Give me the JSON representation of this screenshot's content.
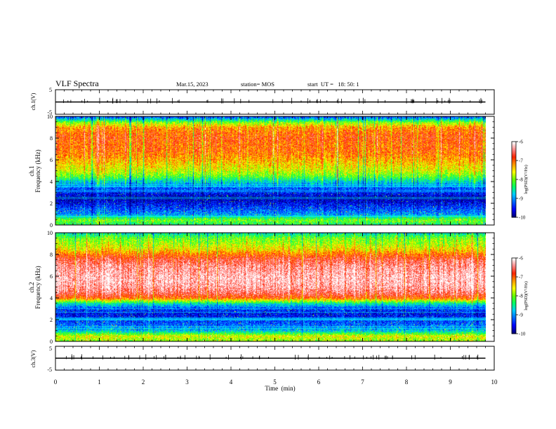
{
  "header": {
    "title": "VLF Spectra",
    "date": "Mar.15, 2023",
    "station": "station= MOS",
    "start": "start  UT =   18: 50: 1"
  },
  "colors": {
    "spectrum": [
      "#00007a",
      "#0000ff",
      "#0066ff",
      "#00ccff",
      "#00ff66",
      "#66ff00",
      "#ffff00",
      "#ff9900",
      "#ff2200",
      "#ff8888",
      "#ffffff"
    ],
    "trace": "#000000"
  },
  "chart_data": [
    {
      "type": "line",
      "name": "waveform-ch1",
      "ylabel": "ch.1(V)",
      "ylim": [
        -5,
        5
      ],
      "yticks": [
        "5",
        "-5"
      ],
      "x": [
        0,
        9.8
      ],
      "y": [
        0,
        0
      ]
    },
    {
      "type": "heatmap",
      "name": "spectrogram-ch1",
      "ylabel_lines": [
        "ch.1",
        "Frequency (kHz)"
      ],
      "ylim": [
        0,
        10
      ],
      "yticks": [
        "0",
        "2",
        "4",
        "6",
        "8",
        "10"
      ],
      "xlim": [
        0,
        10
      ],
      "x_extent": [
        0,
        9.8
      ],
      "colorbar": {
        "label": "log(PSD)(V²/Hz)",
        "range": [
          -10,
          -6
        ],
        "ticks": [
          "-6",
          "-7",
          "-8",
          "-9",
          "-10"
        ]
      },
      "frequency_profile_khz": [
        0,
        0.5,
        1,
        1.5,
        2,
        2.5,
        3,
        3.5,
        4,
        4.5,
        5,
        5.5,
        6,
        6.5,
        7,
        7.5,
        8,
        8.5,
        9,
        9.5,
        10
      ],
      "log_psd_profile": [
        -8.4,
        -8.0,
        -9.0,
        -9.3,
        -9.6,
        -9.9,
        -9.5,
        -9.2,
        -8.7,
        -8.1,
        -7.7,
        -7.5,
        -7.3,
        -7.1,
        -7.0,
        -7.0,
        -6.9,
        -7.0,
        -7.2,
        -8.0,
        -9.4
      ]
    },
    {
      "type": "heatmap",
      "name": "spectrogram-ch2",
      "ylabel_lines": [
        "ch.2",
        "Frequency (kHz)"
      ],
      "ylim": [
        0,
        10
      ],
      "yticks": [
        "0",
        "2",
        "4",
        "6",
        "8",
        "10"
      ],
      "xlim": [
        0,
        10
      ],
      "x_extent": [
        0,
        9.8
      ],
      "colorbar": {
        "label": "log(PSD)(V²/Hz)",
        "range": [
          -10,
          -6
        ],
        "ticks": [
          "-6",
          "-7",
          "-8",
          "-9",
          "-10"
        ]
      },
      "frequency_profile_khz": [
        0,
        0.5,
        1,
        1.5,
        2,
        2.5,
        3,
        3.5,
        4,
        4.5,
        5,
        5.5,
        6,
        6.5,
        7,
        7.5,
        8,
        8.5,
        9,
        9.5,
        10
      ],
      "log_psd_profile": [
        -8.0,
        -7.6,
        -8.8,
        -9.2,
        -9.4,
        -9.6,
        -9.4,
        -8.6,
        -7.0,
        -6.5,
        -6.3,
        -6.2,
        -6.2,
        -6.3,
        -6.4,
        -6.6,
        -7.0,
        -7.5,
        -7.8,
        -8.0,
        -8.6
      ]
    },
    {
      "type": "line",
      "name": "waveform-ch3",
      "ylabel": "ch.3(V)",
      "ylim": [
        -5,
        5
      ],
      "yticks": [
        "5",
        "-5"
      ],
      "x": [
        0,
        9.8
      ],
      "y": [
        0,
        0
      ]
    }
  ],
  "xaxis": {
    "label": "Time  (min)",
    "ticks": [
      "0",
      "1",
      "2",
      "3",
      "4",
      "5",
      "6",
      "7",
      "8",
      "9",
      "10"
    ]
  }
}
